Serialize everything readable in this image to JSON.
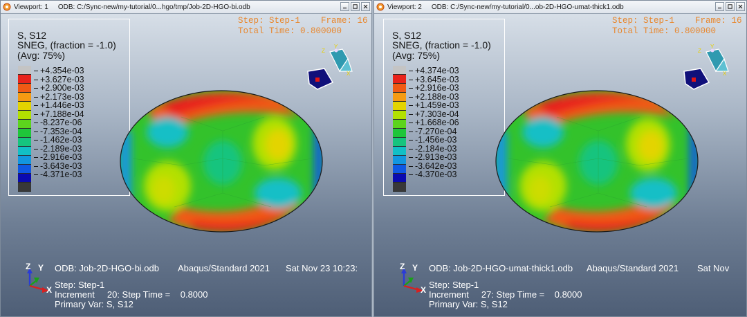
{
  "viewports": [
    {
      "title": "Viewport: 1",
      "odb_path": "ODB: C:/Sync-new/my-tutorial/0...hgo/tmp/Job-2D-HGO-bi.odb",
      "legend": {
        "line1": "S, S12",
        "line2": "SNEG, (fraction = -1.0)",
        "line3": "(Avg: 75%)",
        "values": [
          "+4.354e-03",
          "+3.627e-03",
          "+2.900e-03",
          "+2.173e-03",
          "+1.446e-03",
          "+7.188e-04",
          "-8.237e-06",
          "-7.353e-04",
          "-1.462e-03",
          "-2.189e-03",
          "-2.916e-03",
          "-3.643e-03",
          "-4.371e-03"
        ]
      },
      "status": {
        "step": "Step: Step-1",
        "frame": "Frame: 16",
        "total_time": "Total Time: 0.800000"
      },
      "info": {
        "odb": "ODB: Job-2D-HGO-bi.odb",
        "solver": "Abaqus/Standard 2021",
        "date": "Sat Nov 23 10:23:",
        "step": "Step: Step-1",
        "increment": "Increment     20: Step Time =    0.8000",
        "primary_var": "Primary Var: S, S12"
      },
      "triad": {
        "x": "X",
        "y": "Y",
        "z": "Z"
      }
    },
    {
      "title": "Viewport: 2",
      "odb_path": "ODB: C:/Sync-new/my-tutorial/0...ob-2D-HGO-umat-thick1.odb",
      "legend": {
        "line1": "S, S12",
        "line2": "SNEG, (fraction = -1.0)",
        "line3": "(Avg: 75%)",
        "values": [
          "+4.374e-03",
          "+3.645e-03",
          "+2.916e-03",
          "+2.188e-03",
          "+1.459e-03",
          "+7.303e-04",
          "+1.668e-06",
          "-7.270e-04",
          "-1.456e-03",
          "-2.184e-03",
          "-2.913e-03",
          "-3.642e-03",
          "-4.370e-03"
        ]
      },
      "status": {
        "step": "Step: Step-1",
        "frame": "Frame: 16",
        "total_time": "Total Time: 0.800000"
      },
      "info": {
        "odb": "ODB: Job-2D-HGO-umat-thick1.odb",
        "solver": "Abaqus/Standard 2021",
        "date": "Sat Nov",
        "step": "Step: Step-1",
        "increment": "Increment     27: Step Time =    0.8000",
        "primary_var": "Primary Var: S, S12"
      },
      "triad": {
        "x": "X",
        "y": "Y",
        "z": "Z"
      }
    }
  ],
  "colors": {
    "spectrum": [
      "#c4c4c4",
      "#e8231b",
      "#f05a14",
      "#f59b12",
      "#e3d400",
      "#b2e000",
      "#5cd41d",
      "#1fc63a",
      "#16c47e",
      "#12bfc6",
      "#1296e0",
      "#0f58e4",
      "#0a0ab0",
      "#383838"
    ],
    "status_text": "#e8872d",
    "background_top": "#dde4ec",
    "background_bottom": "#4e5e76"
  },
  "icons": {
    "app": "abaqus-viewport-icon",
    "minimize": "minimize-icon",
    "maximize": "maximize-icon",
    "close": "close-icon"
  }
}
